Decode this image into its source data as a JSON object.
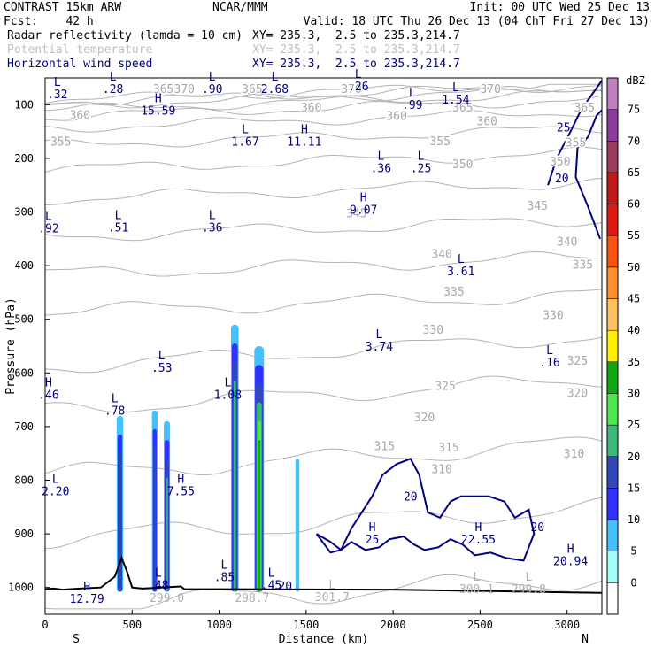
{
  "header": {
    "line1_left": "CONTRAST 15km ARW",
    "line1_center": "NCAR/MMM",
    "line1_right": "Init: 00 UTC Wed 25 Dec 13",
    "line2_left": "Fcst:    42 h",
    "line2_right": "Valid: 18 UTC Thu 26 Dec 13 (04 ChT Fri 27 Dec 13)",
    "fields": [
      {
        "name": "Radar reflectivity (lamda = 10 cm)",
        "xy": "XY= 235.3,  2.5 to 235.3,214.7",
        "color": "#000000"
      },
      {
        "name": "Potential temperature",
        "xy": "XY= 235.3,  2.5 to 235.3,214.7",
        "color": "#c0c0c0"
      },
      {
        "name": "Horizontal wind speed",
        "xy": "XY= 235.3,  2.5 to 235.3,214.7",
        "color": "#000080"
      }
    ]
  },
  "chart_data": {
    "type": "cross-section",
    "xlabel": "Distance (km)",
    "ylabel": "Pressure (hPa)",
    "xlim": [
      0,
      3200
    ],
    "ylim": [
      1050,
      50
    ],
    "x_ticks": [
      0,
      500,
      1000,
      1500,
      2000,
      2500,
      3000
    ],
    "y_ticks": [
      100,
      200,
      300,
      400,
      500,
      600,
      700,
      800,
      900,
      1000
    ],
    "x_end_labels": {
      "left": "S",
      "right": "N"
    },
    "colorbar": {
      "units": "dBZ",
      "levels": [
        0,
        5,
        10,
        15,
        20,
        25,
        30,
        35,
        40,
        45,
        50,
        55,
        60,
        65,
        70,
        75
      ],
      "colors": [
        "#ffffff",
        "#9ffff9",
        "#44c0ff",
        "#3030ff",
        "#3048b8",
        "#3cb878",
        "#50e650",
        "#10a810",
        "#fff000",
        "#ffc060",
        "#ff9030",
        "#ff5010",
        "#e01810",
        "#c01818",
        "#9c3c5c",
        "#8c3c9c",
        "#c080c0"
      ]
    },
    "theta_labels": [
      {
        "text": "370",
        "x": 800,
        "p": 78
      },
      {
        "text": "370",
        "x": 1760,
        "p": 78
      },
      {
        "text": "370",
        "x": 2560,
        "p": 78
      },
      {
        "text": "365",
        "x": 680,
        "p": 78
      },
      {
        "text": "365",
        "x": 1190,
        "p": 78
      },
      {
        "text": "365",
        "x": 2400,
        "p": 113
      },
      {
        "text": "365",
        "x": 3100,
        "p": 113
      },
      {
        "text": "360",
        "x": 200,
        "p": 127
      },
      {
        "text": "360",
        "x": 1530,
        "p": 113
      },
      {
        "text": "360",
        "x": 2020,
        "p": 128
      },
      {
        "text": "360",
        "x": 2540,
        "p": 138
      },
      {
        "text": "355",
        "x": 90,
        "p": 176
      },
      {
        "text": "355",
        "x": 2270,
        "p": 175
      },
      {
        "text": "355",
        "x": 3050,
        "p": 178
      },
      {
        "text": "350",
        "x": 2400,
        "p": 218
      },
      {
        "text": "350",
        "x": 2960,
        "p": 213
      },
      {
        "text": "345",
        "x": 1790,
        "p": 310
      },
      {
        "text": "345",
        "x": 2830,
        "p": 296
      },
      {
        "text": "340",
        "x": 2280,
        "p": 386
      },
      {
        "text": "340",
        "x": 3000,
        "p": 363
      },
      {
        "text": "335",
        "x": 2350,
        "p": 456
      },
      {
        "text": "335",
        "x": 3090,
        "p": 406
      },
      {
        "text": "330",
        "x": 2230,
        "p": 527
      },
      {
        "text": "330",
        "x": 2920,
        "p": 500
      },
      {
        "text": "325",
        "x": 2300,
        "p": 632
      },
      {
        "text": "325",
        "x": 3060,
        "p": 585
      },
      {
        "text": "320",
        "x": 2180,
        "p": 690
      },
      {
        "text": "320",
        "x": 3060,
        "p": 645
      },
      {
        "text": "315",
        "x": 1950,
        "p": 744
      },
      {
        "text": "315",
        "x": 2320,
        "p": 746
      },
      {
        "text": "310",
        "x": 2280,
        "p": 787
      },
      {
        "text": "310",
        "x": 3040,
        "p": 758
      }
    ],
    "wind_labels": [
      {
        "text": "20",
        "x": 1380,
        "p": 1005
      },
      {
        "text": "20",
        "x": 2830,
        "p": 895
      },
      {
        "text": "20",
        "x": 2100,
        "p": 838
      },
      {
        "text": "25",
        "x": 2980,
        "p": 150
      },
      {
        "text": "20",
        "x": 2970,
        "p": 245
      }
    ],
    "extrema": [
      {
        "type": "L",
        "value": ".32",
        "x": 70,
        "p": 70
      },
      {
        "type": "L",
        "value": ".28",
        "x": 390,
        "p": 60
      },
      {
        "type": "H",
        "value": "15.59",
        "x": 650,
        "p": 100
      },
      {
        "type": "L",
        "value": ".90",
        "x": 960,
        "p": 60
      },
      {
        "type": "L",
        "value": "2.68",
        "x": 1320,
        "p": 60
      },
      {
        "type": "L",
        "value": ".26",
        "x": 1800,
        "p": 55
      },
      {
        "type": "L",
        "value": ".99",
        "x": 2110,
        "p": 90
      },
      {
        "type": "L",
        "value": "1.54",
        "x": 2360,
        "p": 80
      },
      {
        "type": "L",
        "value": "1.67",
        "x": 1150,
        "p": 158
      },
      {
        "type": "H",
        "value": "11.11",
        "x": 1490,
        "p": 158
      },
      {
        "type": "L",
        "value": ".36",
        "x": 1930,
        "p": 208
      },
      {
        "type": "L",
        "value": ".25",
        "x": 2160,
        "p": 208
      },
      {
        "type": "L",
        "value": ".92",
        "x": 20,
        "p": 320
      },
      {
        "type": "L",
        "value": ".51",
        "x": 420,
        "p": 318
      },
      {
        "type": "L",
        "value": ".36",
        "x": 960,
        "p": 318
      },
      {
        "type": "H",
        "value": "9.07",
        "x": 1830,
        "p": 285
      },
      {
        "type": "L",
        "value": "3.61",
        "x": 2390,
        "p": 400
      },
      {
        "type": "L",
        "value": "3.74",
        "x": 1920,
        "p": 540
      },
      {
        "type": "L",
        "value": ".53",
        "x": 670,
        "p": 580
      },
      {
        "type": "L",
        "value": ".16",
        "x": 2900,
        "p": 570
      },
      {
        "type": "H",
        "value": ".46",
        "x": 20,
        "p": 630
      },
      {
        "type": "L",
        "value": ".78",
        "x": 400,
        "p": 660
      },
      {
        "type": "L",
        "value": "1.08",
        "x": 1050,
        "p": 630
      },
      {
        "type": "L",
        "value": "2.20",
        "x": 60,
        "p": 810
      },
      {
        "type": "H",
        "value": "7.55",
        "x": 780,
        "p": 810
      },
      {
        "type": "H",
        "value": "25",
        "x": 1880,
        "p": 900
      },
      {
        "type": "H",
        "value": "22.55",
        "x": 2490,
        "p": 900
      },
      {
        "type": "H",
        "value": "20.94",
        "x": 3020,
        "p": 940
      },
      {
        "type": "L",
        "value": ".48",
        "x": 650,
        "p": 985
      },
      {
        "type": "L",
        "value": ".85",
        "x": 1030,
        "p": 970
      },
      {
        "type": "L",
        "value": ".45",
        "x": 1300,
        "p": 985
      },
      {
        "type": "H",
        "value": "12.79",
        "x": 240,
        "p": 1010
      }
    ],
    "theta_low_labels": [
      {
        "type": "L",
        "value": "301.7",
        "x": 1650,
        "p": 1025
      },
      {
        "type": "L",
        "value": "300.1",
        "x": 2480,
        "p": 1010
      },
      {
        "type": "L",
        "value": "299.8",
        "x": 2780,
        "p": 1010
      },
      {
        "type": "",
        "value": "299.0",
        "x": 700,
        "p": 1027
      },
      {
        "type": "",
        "value": "298.7",
        "x": 1190,
        "p": 1027
      }
    ]
  }
}
